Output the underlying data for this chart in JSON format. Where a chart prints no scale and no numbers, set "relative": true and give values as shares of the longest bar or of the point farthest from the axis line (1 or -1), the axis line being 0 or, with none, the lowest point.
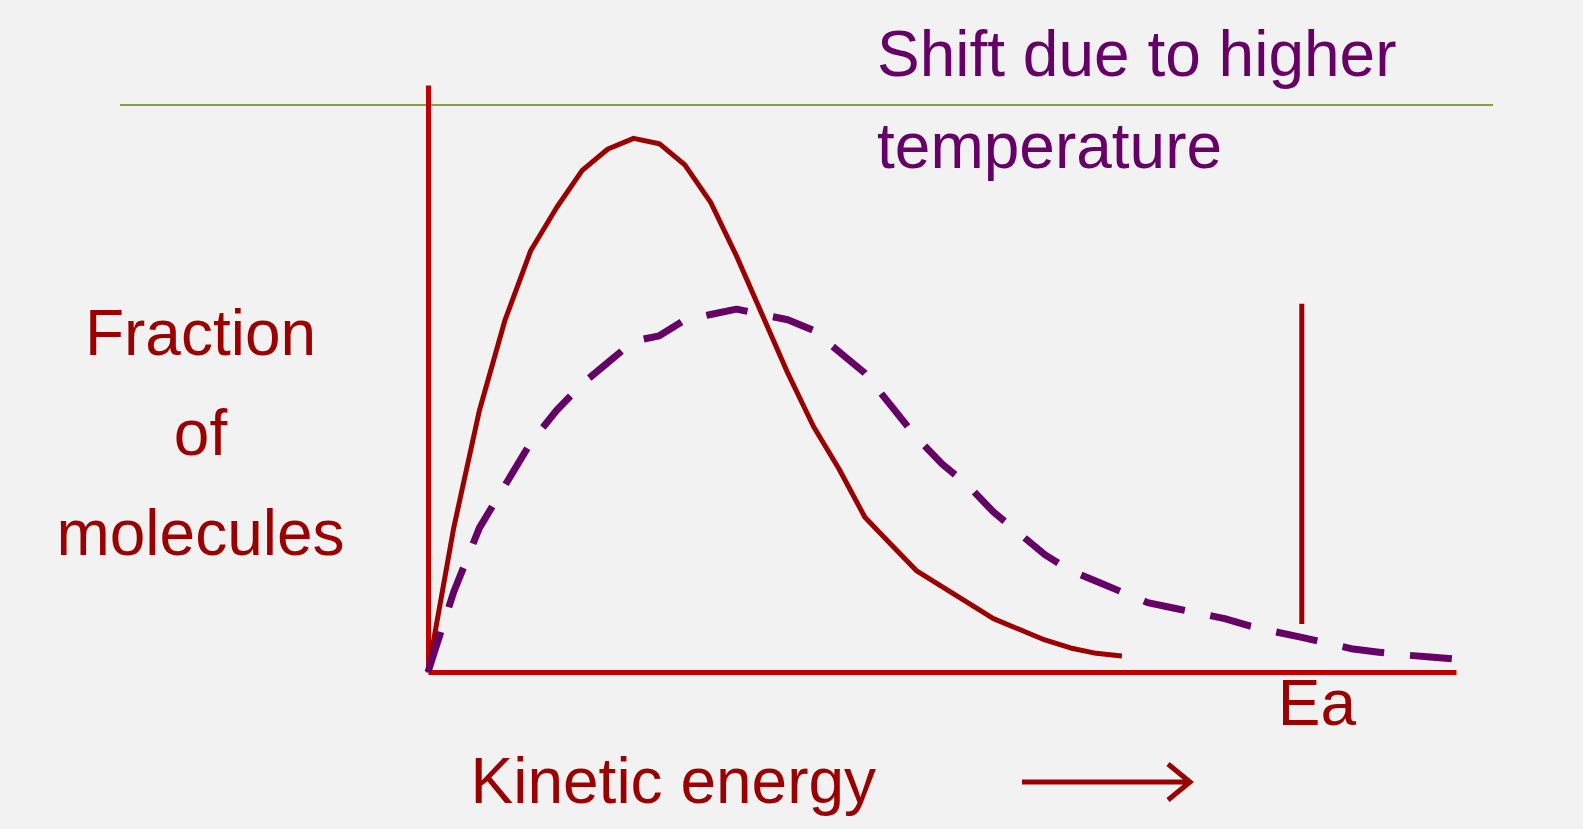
{
  "chart_data": {
    "type": "line",
    "relative": true,
    "xlabel": "Kinetic energy",
    "ylabel": "Fraction of molecules",
    "annotations": [
      "Shift due to higher temperature",
      "Ea"
    ],
    "categories": [
      null,
      null,
      null,
      null,
      null,
      null,
      null,
      null,
      null,
      null,
      null,
      null,
      null,
      null,
      null,
      null,
      null,
      null,
      null,
      null,
      null,
      null,
      null,
      null,
      null,
      null,
      null,
      null,
      null,
      null,
      null,
      null,
      null,
      null,
      null,
      null,
      null,
      null,
      null,
      null,
      null
    ],
    "series": [
      {
        "color": "#9b0000",
        "line_style": "solid",
        "values": [
          0,
          0.27,
          0.49,
          0.66,
          0.79,
          0.87,
          0.94,
          0.98,
          1.0,
          0.99,
          0.95,
          0.88,
          0.78,
          0.67,
          0.56,
          0.46,
          0.38,
          0.29,
          0.24,
          0.19,
          0.16,
          0.13,
          0.1,
          0.08,
          0.06,
          0.045,
          0.035,
          0.03,
          null,
          null,
          null,
          null,
          null,
          null,
          null,
          null,
          null,
          null,
          null,
          null,
          null
        ]
      },
      {
        "color": "#660066",
        "line_style": "dashed",
        "values": [
          0,
          0.15,
          0.27,
          0.35,
          0.43,
          0.49,
          0.54,
          0.58,
          0.62,
          0.63,
          0.66,
          0.67,
          0.68,
          0.67,
          0.66,
          0.64,
          0.6,
          0.56,
          0.5,
          0.44,
          0.39,
          0.35,
          0.3,
          0.26,
          0.22,
          0.19,
          0.17,
          0.15,
          0.13,
          0.12,
          0.11,
          0.1,
          0.086,
          0.075,
          0.065,
          0.054,
          0.043,
          0.037,
          0.032,
          0.028,
          0.024
        ]
      }
    ],
    "grid": false,
    "marker": "none"
  }
}
